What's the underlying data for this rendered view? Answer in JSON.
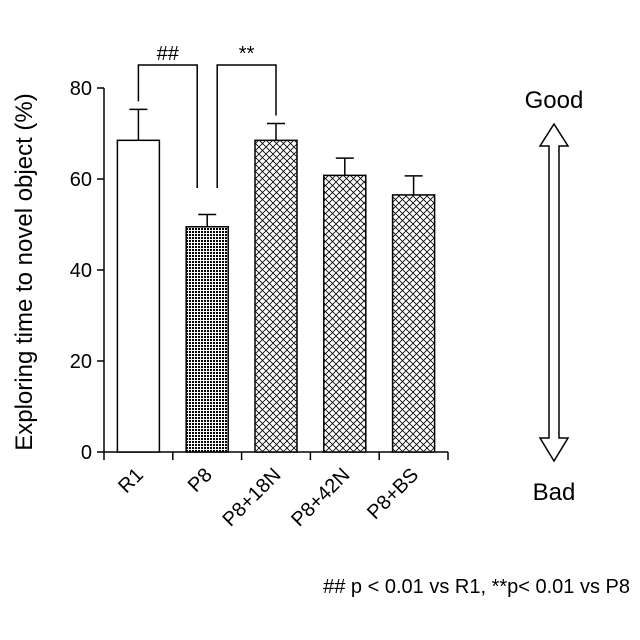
{
  "chart_data": {
    "type": "bar",
    "categories": [
      "R1",
      "P8",
      "P8+18N",
      "P8+42N",
      "P8+BS"
    ],
    "values": [
      68.5,
      49.5,
      68.5,
      60.8,
      56.5
    ],
    "errors": [
      6.8,
      2.7,
      3.7,
      3.8,
      4.2
    ],
    "ylabel": "Exploring time to novel object (%)",
    "ylim": [
      0,
      80
    ],
    "yticks": [
      0,
      20,
      40,
      60,
      80
    ],
    "bar_fills": [
      "white",
      "dense-dots",
      "crosshatch-fine",
      "crosshatch-fine",
      "crosshatch-fine"
    ],
    "significance": [
      {
        "from": "R1",
        "to": "P8",
        "label": "##"
      },
      {
        "from": "P8",
        "to": "P8+18N",
        "label": "**"
      }
    ],
    "annotations": {
      "good_label": "Good",
      "bad_label": "Bad",
      "footnote": "## p < 0.01 vs R1, **p< 0.01 vs P8"
    },
    "grid": false
  }
}
